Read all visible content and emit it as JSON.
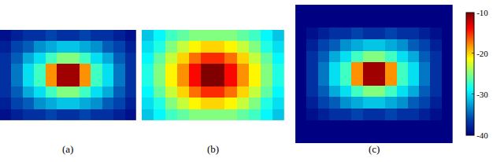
{
  "chart_data": [
    {
      "type": "heatmap",
      "title": "(a)",
      "color": "Jet",
      "tick_labels": false,
      "z": [
        [
          -39,
          -38,
          -37,
          -37,
          -36,
          -37,
          -37,
          -36,
          -37,
          -37,
          -38,
          -39
        ],
        [
          -38,
          -36,
          -35,
          -33,
          -32,
          -31,
          -31,
          -32,
          -33,
          -35,
          -36,
          -38
        ],
        [
          -37,
          -35,
          -32,
          -30,
          -27,
          -25,
          -25,
          -27,
          -30,
          -32,
          -35,
          -37
        ],
        [
          -37,
          -34,
          -30,
          -27,
          -18,
          -11,
          -11,
          -18,
          -27,
          -30,
          -34,
          -37
        ],
        [
          -37,
          -34,
          -30,
          -27,
          -18,
          -11,
          -11,
          -18,
          -27,
          -30,
          -34,
          -37
        ],
        [
          -37,
          -35,
          -32,
          -30,
          -27,
          -25,
          -25,
          -27,
          -30,
          -32,
          -35,
          -37
        ],
        [
          -38,
          -36,
          -35,
          -33,
          -32,
          -31,
          -31,
          -32,
          -33,
          -35,
          -36,
          -38
        ],
        [
          -39,
          -38,
          -37,
          -37,
          -36,
          -37,
          -37,
          -36,
          -37,
          -37,
          -38,
          -39
        ]
      ]
    },
    {
      "type": "heatmap",
      "title": "(b)",
      "color": "Jet",
      "tick_labels": false,
      "z": [
        [
          -31,
          -29,
          -27,
          -26,
          -25,
          -25,
          -25,
          -25,
          -26,
          -27,
          -29,
          -31
        ],
        [
          -30,
          -28,
          -25,
          -23,
          -21,
          -20,
          -20,
          -21,
          -23,
          -25,
          -28,
          -30
        ],
        [
          -29,
          -26,
          -23,
          -20,
          -17,
          -15,
          -15,
          -17,
          -20,
          -23,
          -26,
          -29
        ],
        [
          -28,
          -25,
          -21,
          -18,
          -14,
          -10,
          -10,
          -14,
          -18,
          -21,
          -25,
          -28
        ],
        [
          -28,
          -25,
          -21,
          -18,
          -14,
          -10,
          -10,
          -14,
          -18,
          -21,
          -25,
          -28
        ],
        [
          -29,
          -26,
          -23,
          -20,
          -17,
          -15,
          -15,
          -17,
          -20,
          -23,
          -26,
          -29
        ],
        [
          -30,
          -28,
          -25,
          -23,
          -21,
          -20,
          -20,
          -21,
          -23,
          -25,
          -28,
          -30
        ],
        [
          -31,
          -29,
          -27,
          -26,
          -25,
          -25,
          -25,
          -25,
          -26,
          -27,
          -29,
          -31
        ]
      ]
    },
    {
      "type": "heatmap",
      "title": "(c)",
      "color": "Jet",
      "tick_labels": false,
      "colorbar": {
        "range": [
          -40,
          -10
        ],
        "ticks": [
          -40,
          -30,
          -20,
          -10
        ]
      },
      "z": [
        [
          -40,
          -40,
          -40,
          -40,
          -40,
          -40,
          -40,
          -40,
          -40,
          -40,
          -40,
          -40,
          -40,
          -40
        ],
        [
          -40,
          -40,
          -40,
          -40,
          -40,
          -40,
          -40,
          -40,
          -40,
          -40,
          -40,
          -40,
          -40,
          -40
        ],
        [
          -40,
          -39,
          -38,
          -37,
          -37,
          -36,
          -37,
          -37,
          -36,
          -37,
          -37,
          -38,
          -39,
          -40
        ],
        [
          -40,
          -38,
          -36,
          -35,
          -33,
          -32,
          -31,
          -31,
          -32,
          -33,
          -35,
          -36,
          -38,
          -40
        ],
        [
          -40,
          -37,
          -35,
          -32,
          -30,
          -27,
          -25,
          -25,
          -27,
          -30,
          -32,
          -35,
          -37,
          -40
        ],
        [
          -40,
          -37,
          -34,
          -30,
          -27,
          -18,
          -11,
          -11,
          -18,
          -27,
          -30,
          -34,
          -37,
          -40
        ],
        [
          -40,
          -37,
          -34,
          -30,
          -27,
          -18,
          -11,
          -11,
          -18,
          -27,
          -30,
          -34,
          -37,
          -40
        ],
        [
          -40,
          -37,
          -35,
          -32,
          -30,
          -27,
          -25,
          -25,
          -27,
          -30,
          -32,
          -35,
          -37,
          -40
        ],
        [
          -40,
          -38,
          -36,
          -35,
          -33,
          -32,
          -31,
          -31,
          -32,
          -33,
          -35,
          -36,
          -38,
          -40
        ],
        [
          -40,
          -39,
          -38,
          -37,
          -37,
          -36,
          -37,
          -37,
          -36,
          -37,
          -37,
          -38,
          -39,
          -40
        ],
        [
          -40,
          -40,
          -40,
          -40,
          -40,
          -40,
          -40,
          -40,
          -40,
          -40,
          -40,
          -40,
          -40,
          -40
        ],
        [
          -40,
          -40,
          -40,
          -40,
          -40,
          -40,
          -40,
          -40,
          -40,
          -40,
          -40,
          -40,
          -40,
          -40
        ]
      ]
    }
  ]
}
